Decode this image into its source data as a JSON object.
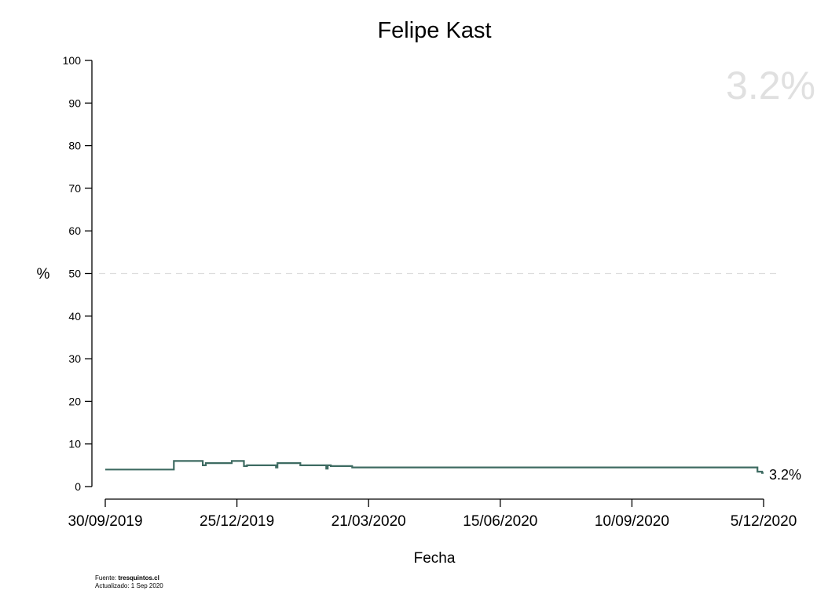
{
  "chart_data": {
    "type": "line",
    "title": "Felipe Kast",
    "xlabel": "Fecha",
    "ylabel": "%",
    "ylim": [
      0,
      100
    ],
    "yticks": [
      0,
      10,
      20,
      30,
      40,
      50,
      60,
      70,
      80,
      90,
      100
    ],
    "xlim": [
      "2019-09-30",
      "2020-12-05"
    ],
    "xticks": [
      "30/09/2019",
      "25/12/2019",
      "21/03/2020",
      "15/06/2020",
      "10/09/2020",
      "5/12/2020"
    ],
    "reference_line": {
      "y": 50,
      "style": "dashed",
      "color": "#dddddd"
    },
    "line_color": "#3e6b62",
    "step": true,
    "series": [
      {
        "points": [
          {
            "x": "2019-09-30",
            "y": 4.0
          },
          {
            "x": "2019-11-14",
            "y": 6.0
          },
          {
            "x": "2019-12-03",
            "y": 5.0
          },
          {
            "x": "2019-12-05",
            "y": 5.5
          },
          {
            "x": "2019-12-22",
            "y": 6.0
          },
          {
            "x": "2019-12-30",
            "y": 4.8
          },
          {
            "x": "2020-01-01",
            "y": 5.0
          },
          {
            "x": "2020-01-20",
            "y": 4.5
          },
          {
            "x": "2020-01-21",
            "y": 5.5
          },
          {
            "x": "2020-02-05",
            "y": 5.0
          },
          {
            "x": "2020-02-22",
            "y": 4.2
          },
          {
            "x": "2020-02-23",
            "y": 5.0
          },
          {
            "x": "2020-02-25",
            "y": 4.8
          },
          {
            "x": "2020-03-10",
            "y": 4.5
          },
          {
            "x": "2020-12-01",
            "y": 3.5
          },
          {
            "x": "2020-12-04",
            "y": 3.2
          }
        ]
      }
    ],
    "last_value_label": "3.2%",
    "big_value_label": "3.2%",
    "big_value_color": "#e0e0e0"
  },
  "footer": {
    "source_prefix": "Fuente: ",
    "source_name": "tresquintos.cl",
    "updated": "Actualizado: 1 Sep 2020"
  }
}
